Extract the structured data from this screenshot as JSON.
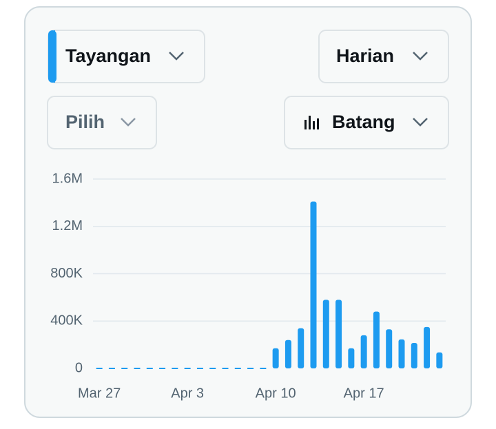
{
  "controls": {
    "metric": "Tayangan",
    "period": "Harian",
    "filter": "Pilih",
    "chart_style": "Batang"
  },
  "chart_data": {
    "type": "bar",
    "categories": [
      "Mar 27",
      null,
      null,
      null,
      null,
      null,
      null,
      "Apr 3",
      null,
      null,
      null,
      null,
      null,
      null,
      "Apr 10",
      null,
      null,
      null,
      null,
      null,
      null,
      "Apr 17",
      null,
      null,
      null,
      null,
      null,
      null
    ],
    "values": [
      0,
      0,
      0,
      0,
      0,
      0,
      0,
      0,
      0,
      0,
      0,
      0,
      0,
      0,
      170000,
      240000,
      340000,
      1410000,
      580000,
      580000,
      170000,
      280000,
      480000,
      330000,
      245000,
      215000,
      350000,
      135000
    ],
    "color": "#1d9bf0",
    "ylim": [
      0,
      1600000
    ],
    "yticks": [
      0,
      {
        "value": 400000,
        "label": "400K"
      },
      {
        "value": 800000,
        "label": "800K"
      },
      {
        "value": 1200000,
        "label": "1.2M"
      },
      {
        "value": 1600000,
        "label": "1.6M"
      }
    ],
    "grid": true
  }
}
